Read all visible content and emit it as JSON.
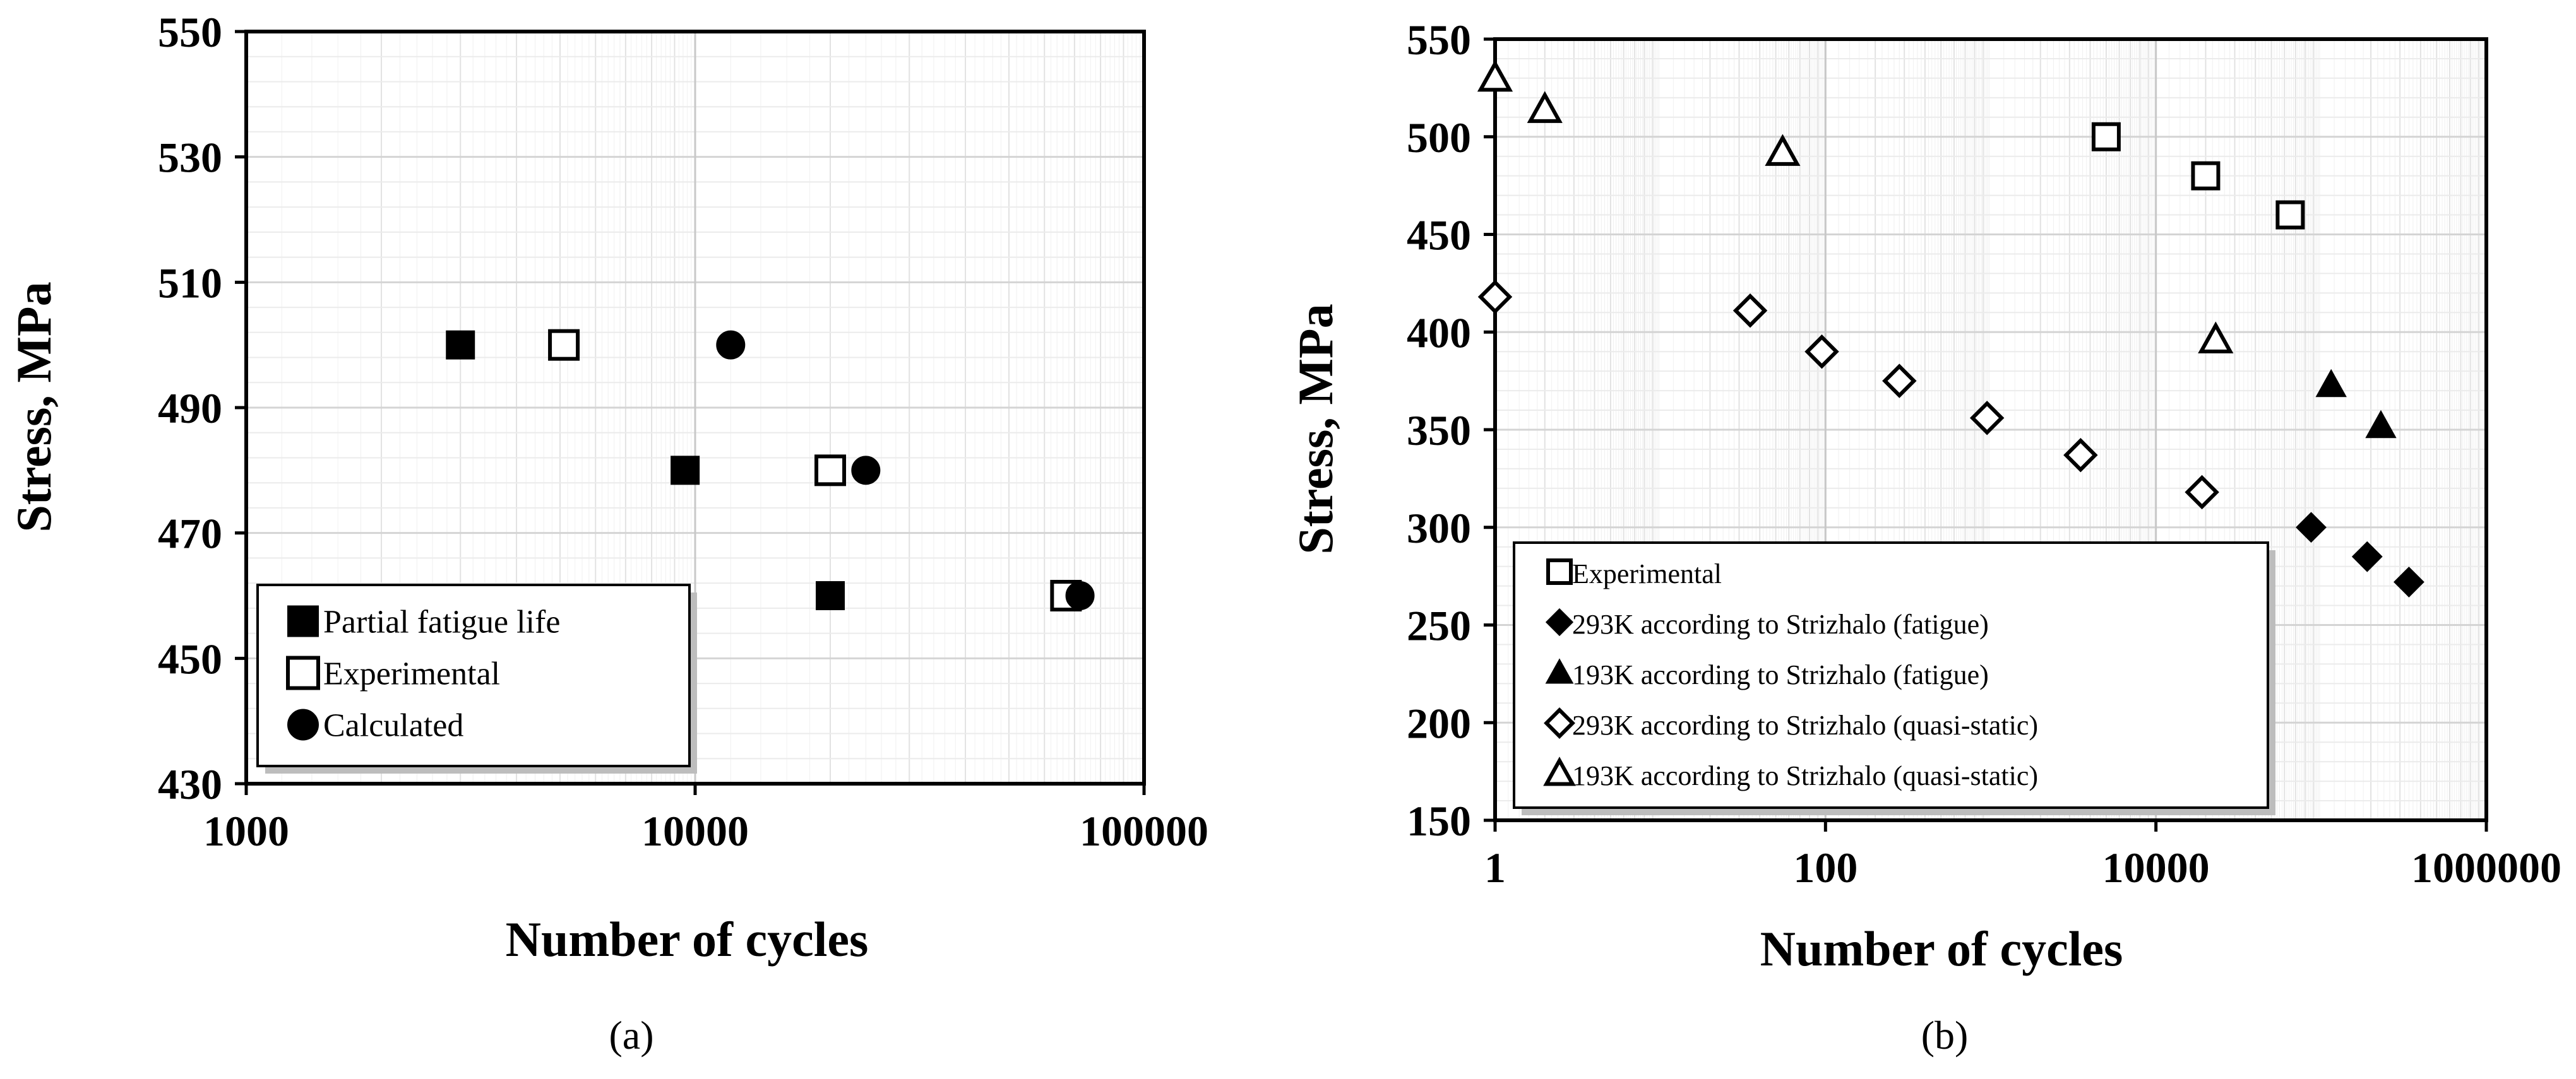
{
  "figure": {
    "caption_a": "(a)",
    "caption_b": "(b)"
  },
  "chart_data": [
    {
      "id": "a",
      "type": "scatter",
      "xscale": "log",
      "xlim": [
        1000,
        100000
      ],
      "ylim": [
        430,
        550
      ],
      "xticks": [
        1000,
        10000,
        100000
      ],
      "xtick_labels": [
        "1000",
        "10000",
        "100000"
      ],
      "yticks": [
        430,
        450,
        470,
        490,
        510,
        530,
        550
      ],
      "ytick_labels": [
        "430",
        "450",
        "470",
        "490",
        "510",
        "530",
        "550"
      ],
      "xlabel": "Number of cycles",
      "ylabel": "Stress, MPa",
      "grid": true,
      "legend_position": "bottom-left",
      "series": [
        {
          "name": "Partial fatigue life",
          "marker": "square",
          "filled": true,
          "points": [
            {
              "x": 3000,
              "y": 500
            },
            {
              "x": 9500,
              "y": 480
            },
            {
              "x": 20000,
              "y": 460
            }
          ]
        },
        {
          "name": "Experimental",
          "marker": "square",
          "filled": false,
          "points": [
            {
              "x": 5100,
              "y": 500
            },
            {
              "x": 20000,
              "y": 480
            },
            {
              "x": 67000,
              "y": 460
            }
          ]
        },
        {
          "name": "Calculated",
          "marker": "circle",
          "filled": true,
          "points": [
            {
              "x": 12000,
              "y": 500
            },
            {
              "x": 24000,
              "y": 480
            },
            {
              "x": 72000,
              "y": 460
            }
          ]
        }
      ]
    },
    {
      "id": "b",
      "type": "scatter",
      "xscale": "log",
      "xlim": [
        1,
        1000000
      ],
      "ylim": [
        150,
        550
      ],
      "xticks": [
        1,
        100,
        10000,
        1000000
      ],
      "xtick_labels": [
        "1",
        "100",
        "10000",
        "1000000"
      ],
      "yticks": [
        150,
        200,
        250,
        300,
        350,
        400,
        450,
        500,
        550
      ],
      "ytick_labels": [
        "150",
        "200",
        "250",
        "300",
        "350",
        "400",
        "450",
        "500",
        "550"
      ],
      "xlabel": "Number of cycles",
      "ylabel": "Stress, MPa",
      "grid": true,
      "legend_position": "bottom-left",
      "series": [
        {
          "name": "Experimental",
          "marker": "square",
          "filled": false,
          "points": [
            {
              "x": 5000,
              "y": 500
            },
            {
              "x": 20000,
              "y": 480
            },
            {
              "x": 65000,
              "y": 460
            }
          ]
        },
        {
          "name": "293K according to Strizhalo (fatigue)",
          "marker": "diamond",
          "filled": true,
          "points": [
            {
              "x": 87000,
              "y": 300
            },
            {
              "x": 190000,
              "y": 285
            },
            {
              "x": 340000,
              "y": 272
            }
          ]
        },
        {
          "name": "193K according to Strizhalo (fatigue)",
          "marker": "triangle",
          "filled": true,
          "points": [
            {
              "x": 115000,
              "y": 373
            },
            {
              "x": 230000,
              "y": 352
            }
          ]
        },
        {
          "name": "293K according to Strizhalo (quasi-static)",
          "marker": "diamond",
          "filled": false,
          "points": [
            {
              "x": 1,
              "y": 418
            },
            {
              "x": 35,
              "y": 411
            },
            {
              "x": 95,
              "y": 390
            },
            {
              "x": 280,
              "y": 375
            },
            {
              "x": 950,
              "y": 356
            },
            {
              "x": 3500,
              "y": 337
            },
            {
              "x": 19000,
              "y": 318
            }
          ]
        },
        {
          "name": "193K according to Strizhalo (quasi-static)",
          "marker": "triangle",
          "filled": false,
          "points": [
            {
              "x": 1,
              "y": 530
            },
            {
              "x": 2,
              "y": 514
            },
            {
              "x": 55,
              "y": 492
            },
            {
              "x": 23000,
              "y": 396
            }
          ]
        }
      ]
    }
  ]
}
